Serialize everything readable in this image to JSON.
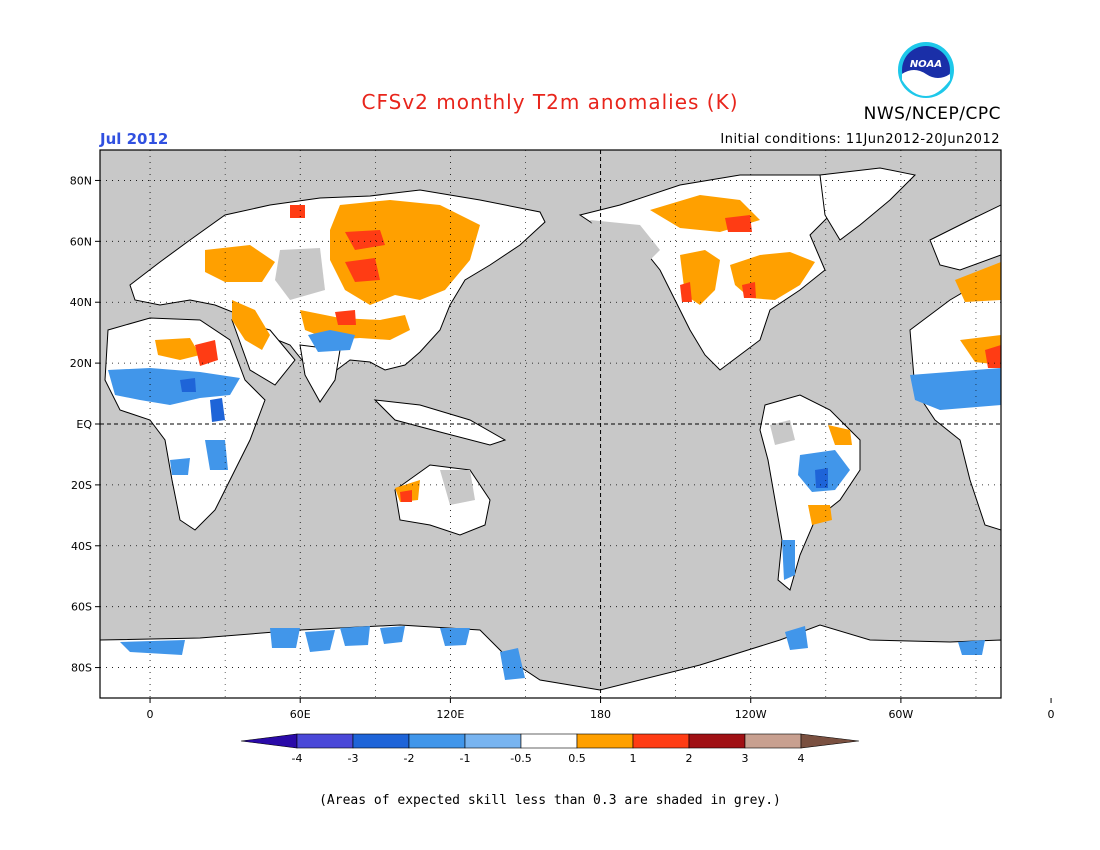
{
  "title": "CFSv2 monthly T2m anomalies (K)",
  "month": "Jul 2012",
  "initial_conditions": "Initial conditions: 11Jun2012-20Jun2012",
  "agency": "NWS/NCEP/CPC",
  "logo_text": "NOAA",
  "note": "(Areas of expected skill less than 0.3 are shaded in grey.)",
  "map": {
    "lat_labels": [
      "80N",
      "60N",
      "40N",
      "20N",
      "EQ",
      "20S",
      "40S",
      "60S",
      "80S"
    ],
    "lon_labels": [
      "0",
      "60E",
      "120E",
      "180",
      "120W",
      "60W",
      "0"
    ],
    "ocean_color": "#c8c8c8",
    "land_color": "#ffffff"
  },
  "colorbar": {
    "tick_labels": [
      "-4",
      "-3",
      "-2",
      "-1",
      "-0.5",
      "0.5",
      "1",
      "2",
      "3",
      "4"
    ],
    "colors": [
      "#2a0aa8",
      "#4a48d8",
      "#1e64d8",
      "#4196ea",
      "#78b4f0",
      "#ffffff",
      "#ffa000",
      "#ff3c14",
      "#a01014",
      "#c8a090",
      "#7a5040"
    ]
  }
}
